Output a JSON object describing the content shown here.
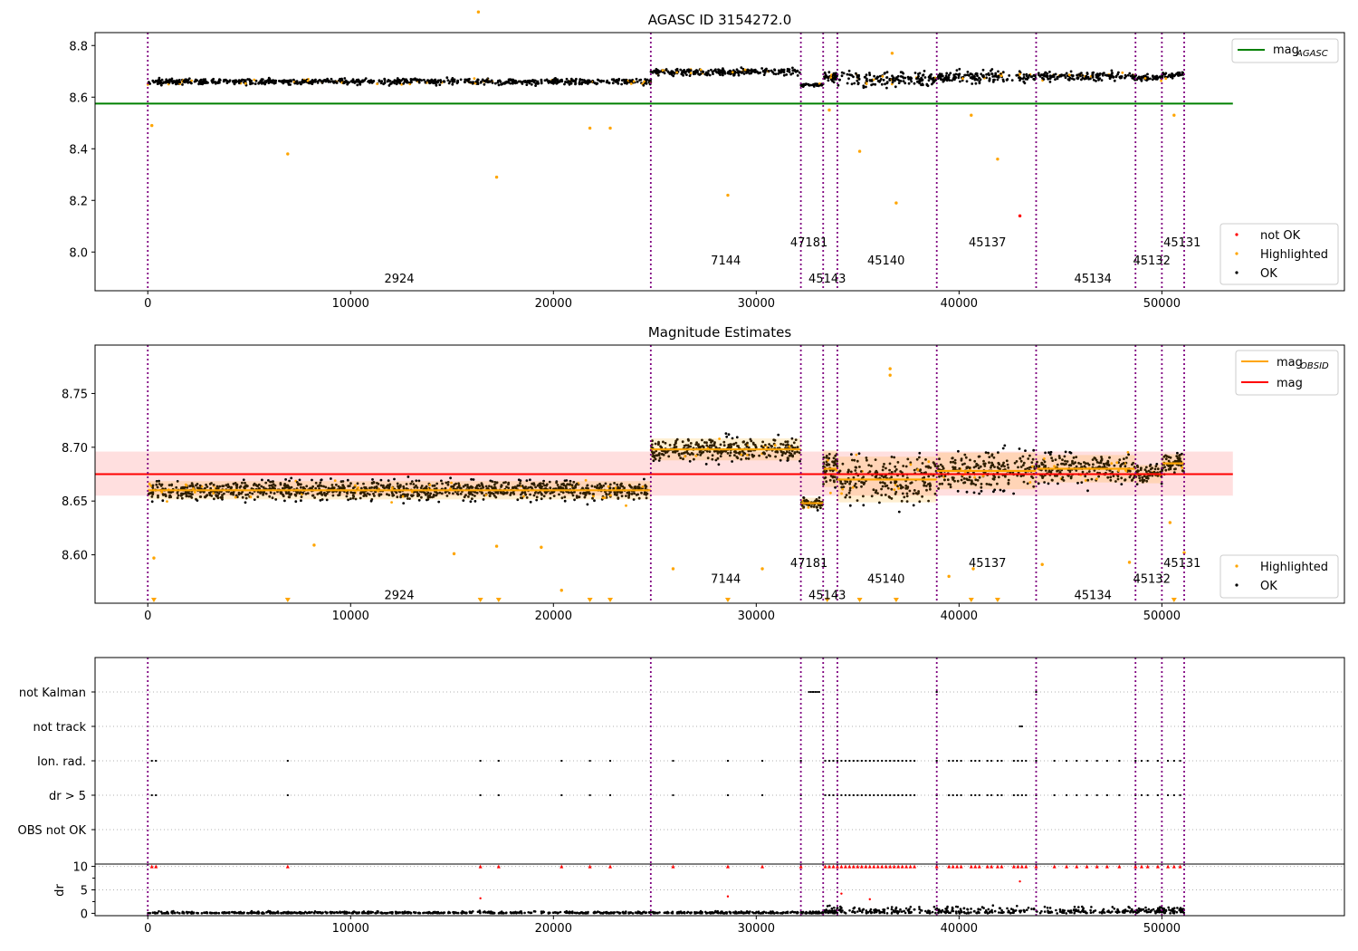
{
  "x_ticks": [
    0,
    10000,
    20000,
    30000,
    40000,
    50000
  ],
  "obs_boundaries": [
    0,
    24800,
    32200,
    33300,
    34000,
    38900,
    43800,
    48700,
    50000,
    51100
  ],
  "chart_data": [
    {
      "type": "scatter",
      "title": "AGASC ID 3154272.0",
      "xlim": [
        -2600,
        59000
      ],
      "ylim": [
        7.85,
        8.85
      ],
      "yticks": [
        8.0,
        8.2,
        8.4,
        8.6,
        8.8
      ],
      "mag_agasc": 8.575,
      "mag_agasc_xrange": [
        -2600,
        53500
      ],
      "obs_segments": [
        {
          "x0": 0,
          "x1": 24800,
          "mean": 8.66,
          "spread": 0.01
        },
        {
          "x0": 24800,
          "x1": 32200,
          "mean": 8.698,
          "spread": 0.012
        },
        {
          "x0": 32200,
          "x1": 33300,
          "mean": 8.648,
          "spread": 0.006
        },
        {
          "x0": 33300,
          "x1": 34000,
          "mean": 8.68,
          "spread": 0.02
        },
        {
          "x0": 34000,
          "x1": 38900,
          "mean": 8.67,
          "spread": 0.025
        },
        {
          "x0": 38900,
          "x1": 43800,
          "mean": 8.678,
          "spread": 0.02
        },
        {
          "x0": 43800,
          "x1": 48700,
          "mean": 8.68,
          "spread": 0.015
        },
        {
          "x0": 48700,
          "x1": 50000,
          "mean": 8.675,
          "spread": 0.01
        },
        {
          "x0": 50000,
          "x1": 51100,
          "mean": 8.685,
          "spread": 0.01
        }
      ],
      "outliers_highlighted": [
        [
          200,
          8.49
        ],
        [
          6900,
          8.38
        ],
        [
          16300,
          8.93
        ],
        [
          17200,
          8.29
        ],
        [
          21800,
          8.48
        ],
        [
          22800,
          8.48
        ],
        [
          28600,
          8.22
        ],
        [
          33600,
          8.55
        ],
        [
          35100,
          8.39
        ],
        [
          36900,
          8.19
        ],
        [
          36700,
          8.77
        ],
        [
          40600,
          8.53
        ],
        [
          41900,
          8.36
        ],
        [
          50600,
          8.53
        ]
      ],
      "outliers_not_ok": [
        [
          43000,
          8.14
        ]
      ],
      "obsid_labels": [
        {
          "text": "2924",
          "x": 12400,
          "y": 7.9
        },
        {
          "text": "7144",
          "x": 28500,
          "y": 7.97
        },
        {
          "text": "47181",
          "x": 32600,
          "y": 8.04
        },
        {
          "text": "45143",
          "x": 33500,
          "y": 7.9
        },
        {
          "text": "45140",
          "x": 36400,
          "y": 7.97
        },
        {
          "text": "45137",
          "x": 41400,
          "y": 8.04
        },
        {
          "text": "45134",
          "x": 46600,
          "y": 7.9
        },
        {
          "text": "45132",
          "x": 49500,
          "y": 7.97
        },
        {
          "text": "45131",
          "x": 51000,
          "y": 8.04
        }
      ],
      "legend_top": [
        {
          "label_main": "mag",
          "label_sub": "AGASC",
          "color": "#008000"
        }
      ],
      "legend_bottom": [
        {
          "label": "not OK",
          "color": "#ff0000"
        },
        {
          "label": "Highlighted",
          "color": "#ffa500"
        },
        {
          "label": "OK",
          "color": "#000000"
        }
      ]
    },
    {
      "type": "scatter",
      "title": "Magnitude Estimates",
      "xlim": [
        -2600,
        59000
      ],
      "ylim": [
        8.555,
        8.795
      ],
      "yticks": [
        8.6,
        8.65,
        8.7,
        8.75
      ],
      "ytick_labels": [
        "8.60",
        "8.65",
        "8.70",
        "8.75"
      ],
      "mag": 8.675,
      "mag_band": [
        8.655,
        8.696
      ],
      "mag_xrange": [
        -2600,
        53500
      ],
      "outliers_highlighted": [
        [
          300,
          8.597
        ],
        [
          8200,
          8.609
        ],
        [
          15100,
          8.601
        ],
        [
          17200,
          8.608
        ],
        [
          19400,
          8.607
        ],
        [
          20400,
          8.567
        ],
        [
          25900,
          8.587
        ],
        [
          30300,
          8.587
        ],
        [
          36600,
          8.773
        ],
        [
          36600,
          8.767
        ],
        [
          39500,
          8.58
        ],
        [
          40700,
          8.587
        ],
        [
          44100,
          8.591
        ],
        [
          48400,
          8.593
        ],
        [
          50400,
          8.63
        ],
        [
          51100,
          8.602
        ]
      ],
      "clipped_markers_x": [
        300,
        6900,
        16400,
        17300,
        21800,
        22800,
        28600,
        33500,
        35100,
        36900,
        40600,
        41900,
        50600
      ],
      "obsid_labels": [
        {
          "text": "2924",
          "x": 12400,
          "y": 8.563
        },
        {
          "text": "7144",
          "x": 28500,
          "y": 8.578
        },
        {
          "text": "47181",
          "x": 32600,
          "y": 8.593
        },
        {
          "text": "45143",
          "x": 33500,
          "y": 8.563
        },
        {
          "text": "45140",
          "x": 36400,
          "y": 8.578
        },
        {
          "text": "45137",
          "x": 41400,
          "y": 8.593
        },
        {
          "text": "45134",
          "x": 46600,
          "y": 8.563
        },
        {
          "text": "45132",
          "x": 49500,
          "y": 8.578
        },
        {
          "text": "45131",
          "x": 51000,
          "y": 8.593
        }
      ],
      "legend_top": [
        {
          "label_main": "mag",
          "label_sub": "OBSID",
          "color": "#ffa500"
        },
        {
          "label_main": "mag",
          "label_sub": "",
          "color": "#ff0000"
        }
      ],
      "legend_bottom": [
        {
          "label": "Highlighted",
          "color": "#ffa500"
        },
        {
          "label": "OK",
          "color": "#000000"
        }
      ]
    },
    {
      "type": "scatter",
      "title": "",
      "xlim": [
        -2600,
        59000
      ],
      "categories": [
        "not Kalman",
        "not track",
        "Ion. rad.",
        "dr > 5",
        "OBS not OK"
      ],
      "flag_points": {
        "not Kalman": [
          32600,
          32700,
          32800,
          32900,
          33000,
          33100,
          38900,
          43800
        ],
        "not track": [
          34000,
          43000,
          43100
        ],
        "Ion. rad.": [
          200,
          400,
          6900,
          16400,
          17300,
          20400,
          21800,
          22800,
          25900,
          28600,
          30300,
          32200,
          33400,
          33600,
          33800,
          34000,
          34200,
          34400,
          34600,
          34800,
          35000,
          35200,
          35400,
          35600,
          35800,
          36000,
          36200,
          36400,
          36600,
          36800,
          37000,
          37200,
          37400,
          37600,
          37800,
          38900,
          39500,
          39700,
          39900,
          40100,
          40600,
          40800,
          41000,
          41400,
          41600,
          41900,
          42100,
          42700,
          42900,
          43100,
          43300,
          43800,
          44700,
          45300,
          45800,
          46300,
          46800,
          47300,
          47900,
          48700,
          49000,
          49300,
          49800,
          50300,
          50600,
          50900
        ],
        "dr > 5": [
          200,
          400,
          6900,
          16400,
          17300,
          20400,
          21800,
          22800,
          25900,
          28600,
          30300,
          32200,
          33400,
          33600,
          33800,
          34000,
          34200,
          34400,
          34600,
          34800,
          35000,
          35200,
          35400,
          35600,
          35800,
          36000,
          36200,
          36400,
          36600,
          36800,
          37000,
          37200,
          37400,
          37600,
          37800,
          38900,
          39500,
          39700,
          39900,
          40100,
          40600,
          40800,
          41000,
          41400,
          41600,
          41900,
          42100,
          42700,
          42900,
          43100,
          43300,
          43800,
          44700,
          45300,
          45800,
          46300,
          46800,
          47300,
          47900,
          48700,
          49000,
          49300,
          49800,
          50300,
          50600,
          50900
        ],
        "OBS not OK": []
      }
    },
    {
      "type": "scatter",
      "title": "",
      "xlim": [
        -2600,
        59000
      ],
      "ylim": [
        -0.5,
        10.5
      ],
      "yticks": [
        0,
        5,
        10
      ],
      "ylabel": "dr",
      "clipped_x": [
        200,
        400,
        6900,
        16400,
        17300,
        20400,
        21800,
        22800,
        25900,
        28600,
        30300,
        32200,
        33400,
        33600,
        33800,
        34000,
        34200,
        34400,
        34600,
        34800,
        35000,
        35200,
        35400,
        35600,
        35800,
        36000,
        36200,
        36400,
        36600,
        36800,
        37000,
        37200,
        37400,
        37600,
        37800,
        38900,
        39500,
        39700,
        39900,
        40100,
        40600,
        40800,
        41000,
        41400,
        41600,
        41900,
        42100,
        42700,
        42900,
        43100,
        43300,
        43800,
        44700,
        45300,
        45800,
        46300,
        46800,
        47300,
        47900,
        48700,
        49000,
        49300,
        49800,
        50300,
        50600,
        50900
      ],
      "isolated_points": [
        [
          16400,
          3.2
        ],
        [
          28600,
          3.6
        ],
        [
          43000,
          6.8
        ],
        [
          34200,
          4.2
        ],
        [
          35600,
          3.0
        ]
      ]
    }
  ]
}
